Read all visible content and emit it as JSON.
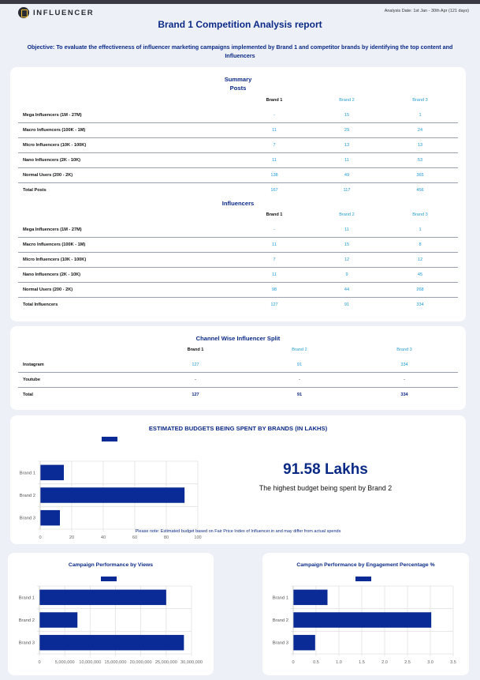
{
  "header": {
    "logo_text": "INFLUENCER",
    "analysis_date": "Analysis Date: 1st Jan - 30th Apr (121 days)",
    "title": "Brand 1 Competition Analysis report",
    "objective": "Objective: To evaluate the effectiveness of influencer marketing campaigns implemented by Brand 1 and competitor brands by identifying the top content and Influencers"
  },
  "summary": {
    "title": "Summary",
    "posts": {
      "title": "Posts",
      "columns": [
        "Brand 1",
        "Brand 2",
        "Brand 3"
      ],
      "rows": [
        {
          "label": "Mega Influencers (1M - 27M)",
          "values": [
            "-",
            "15",
            "1"
          ]
        },
        {
          "label": "Macro Influencers (100K - 1M)",
          "values": [
            "11",
            "29",
            "24"
          ]
        },
        {
          "label": "Micro Influencers (10K - 100K)",
          "values": [
            "7",
            "13",
            "13"
          ]
        },
        {
          "label": "Nano Influencers (2K - 10K)",
          "values": [
            "11",
            "11",
            "53"
          ]
        },
        {
          "label": "Normal Users (200 - 2K)",
          "values": [
            "138",
            "49",
            "365"
          ]
        },
        {
          "label": "Total Posts",
          "values": [
            "167",
            "117",
            "456"
          ]
        }
      ]
    },
    "influencers": {
      "title": "Influencers",
      "columns": [
        "Brand 1",
        "Brand 2",
        "Brand 3"
      ],
      "rows": [
        {
          "label": "Mega Influencers (1M - 27M)",
          "values": [
            "-",
            "11",
            "1"
          ]
        },
        {
          "label": "Macro Influencers (100K - 1M)",
          "values": [
            "11",
            "15",
            "8"
          ]
        },
        {
          "label": "Micro Influencers (10K - 100K)",
          "values": [
            "7",
            "12",
            "12"
          ]
        },
        {
          "label": "Nano Influencers (2K - 10K)",
          "values": [
            "11",
            "9",
            "45"
          ]
        },
        {
          "label": "Normal Users (200 - 2K)",
          "values": [
            "98",
            "44",
            "268"
          ]
        },
        {
          "label": "Total Influencers",
          "values": [
            "127",
            "91",
            "334"
          ]
        }
      ]
    }
  },
  "channel_split": {
    "title": "Channel Wise Influencer Split",
    "columns": [
      "Brand 1",
      "Brand 2",
      "Brand 3"
    ],
    "rows": [
      {
        "label": "Instagram",
        "values": [
          "127",
          "91",
          "334"
        ]
      },
      {
        "label": "Youtube",
        "values": [
          "-",
          "-",
          "-"
        ]
      },
      {
        "label": "Total",
        "values": [
          "127",
          "91",
          "334"
        ]
      }
    ]
  },
  "budget": {
    "title": "ESTIMATED BUDGETS BEING SPENT BY BRANDS (IN LAKHS)",
    "highlight_value": "91.58 Lakhs",
    "highlight_text": "The highest budget being spent by Brand 2",
    "note": "Please note: Estimated budget based on Fair Price Index of Influencer.in and may differ from actual spends"
  },
  "views_chart_title": "Campaign Performance by Views",
  "engagement_chart_title": "Campaign Performance by Engagement Percentage %",
  "chart_data": [
    {
      "type": "bar",
      "orientation": "horizontal",
      "title": "ESTIMATED BUDGETS BEING SPENT BY BRANDS (IN LAKHS)",
      "categories": [
        "Brand 1",
        "Brand 2",
        "Brand 3"
      ],
      "values": [
        15,
        91.58,
        12.5
      ],
      "xlim": [
        0,
        100
      ],
      "xticks": [
        "0",
        "20",
        "40",
        "60",
        "80",
        "100"
      ],
      "color": "#0a2a96",
      "grid": true,
      "legend": "top"
    },
    {
      "type": "bar",
      "orientation": "horizontal",
      "title": "Campaign Performance by Views",
      "categories": [
        "Brand 1",
        "Brand 2",
        "Brand 3"
      ],
      "values": [
        25000000,
        7500000,
        28500000
      ],
      "xlim": [
        0,
        30000000
      ],
      "xticks": [
        "0",
        "5,000,000",
        "10,000,000",
        "15,000,000",
        "20,000,000",
        "25,000,000",
        "30,000,000"
      ],
      "color": "#0a2a96",
      "grid": true,
      "legend": "top"
    },
    {
      "type": "bar",
      "orientation": "horizontal",
      "title": "Campaign Performance by Engagement Percentage %",
      "categories": [
        "Brand 1",
        "Brand 2",
        "Brand 3"
      ],
      "values": [
        0.75,
        3.02,
        0.48
      ],
      "xlim": [
        0,
        3.5
      ],
      "xticks": [
        "0",
        "0.5",
        "1.0",
        "1.5",
        "2.0",
        "2.5",
        "3.0",
        "3.5"
      ],
      "color": "#0a2a96",
      "grid": true,
      "legend": "top"
    }
  ]
}
